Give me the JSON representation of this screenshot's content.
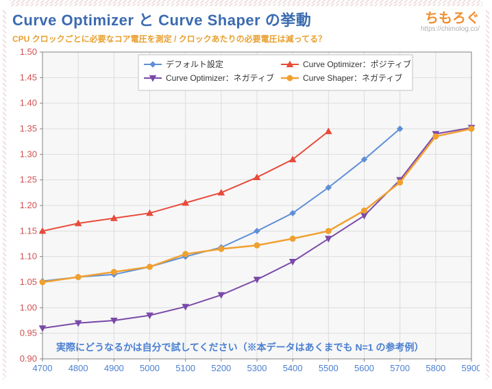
{
  "header": {
    "title": "Curve Optimizer と Curve Shaper の挙動",
    "subtitle": "CPU クロックごとに必要なコア電圧を測定 / クロックあたりの必要電圧は減ってる？",
    "brand_name": "ちもろぐ",
    "brand_url": "https://chimolog.co/"
  },
  "note": "実際にどうなるかは自分で試してください（※本データはあくまでも N=1 の参考例）",
  "chart": {
    "type": "line",
    "plot_bg": "#f7f7f7",
    "grid_color": "#dcdcdc",
    "axis_tick_color": "#808080",
    "xlabel_color": "#4a7fd0",
    "ylabel_color": "#d05050",
    "tick_fontsize": 13,
    "x": {
      "min": 4700,
      "max": 5900,
      "step": 100,
      "ticks": [
        4700,
        4800,
        4900,
        5000,
        5100,
        5200,
        5300,
        5400,
        5500,
        5600,
        5700,
        5800,
        5900
      ]
    },
    "y": {
      "min": 0.9,
      "max": 1.5,
      "step": 0.05,
      "ticks": [
        0.9,
        0.95,
        1.0,
        1.05,
        1.1,
        1.15,
        1.2,
        1.25,
        1.3,
        1.35,
        1.4,
        1.45,
        1.5
      ]
    },
    "series": [
      {
        "name": "デフォルト設定",
        "color": "#5e8fd6",
        "marker": "diamond",
        "marker_size": 8,
        "line_width": 2,
        "points": [
          [
            4700,
            1.052
          ],
          [
            4800,
            1.06
          ],
          [
            4900,
            1.065
          ],
          [
            5000,
            1.08
          ],
          [
            5100,
            1.1
          ],
          [
            5200,
            1.118
          ],
          [
            5300,
            1.15
          ],
          [
            5400,
            1.185
          ],
          [
            5500,
            1.235
          ],
          [
            5600,
            1.29
          ],
          [
            5700,
            1.35
          ]
        ]
      },
      {
        "name": "Curve Optimizer：ポジティブ",
        "color": "#e84a3a",
        "marker": "triangle",
        "marker_size": 9,
        "line_width": 2,
        "points": [
          [
            4700,
            1.15
          ],
          [
            4800,
            1.165
          ],
          [
            4900,
            1.175
          ],
          [
            5000,
            1.185
          ],
          [
            5100,
            1.205
          ],
          [
            5200,
            1.225
          ],
          [
            5300,
            1.255
          ],
          [
            5400,
            1.29
          ],
          [
            5500,
            1.345
          ]
        ]
      },
      {
        "name": "Curve Optimizer：ネガティブ",
        "color": "#7a4aa8",
        "marker": "tridown",
        "marker_size": 9,
        "line_width": 2,
        "points": [
          [
            4700,
            0.96
          ],
          [
            4800,
            0.97
          ],
          [
            4900,
            0.975
          ],
          [
            5000,
            0.985
          ],
          [
            5100,
            1.002
          ],
          [
            5200,
            1.025
          ],
          [
            5300,
            1.055
          ],
          [
            5400,
            1.09
          ],
          [
            5500,
            1.135
          ],
          [
            5600,
            1.18
          ],
          [
            5700,
            1.25
          ],
          [
            5800,
            1.34
          ],
          [
            5900,
            1.352
          ]
        ]
      },
      {
        "name": "Curve Shaper：ネガティブ",
        "color": "#f0a030",
        "marker": "circle",
        "marker_size": 8,
        "line_width": 2.5,
        "points": [
          [
            4700,
            1.05
          ],
          [
            4800,
            1.06
          ],
          [
            4900,
            1.07
          ],
          [
            5000,
            1.08
          ],
          [
            5100,
            1.105
          ],
          [
            5200,
            1.115
          ],
          [
            5300,
            1.122
          ],
          [
            5400,
            1.135
          ],
          [
            5500,
            1.15
          ],
          [
            5600,
            1.19
          ],
          [
            5700,
            1.245
          ],
          [
            5800,
            1.335
          ],
          [
            5900,
            1.35
          ]
        ]
      }
    ],
    "legend": {
      "x": 0.25,
      "y_top": 0.99,
      "bg": "#ffffff",
      "border": "#c0c0c0",
      "fontsize": 12
    }
  }
}
